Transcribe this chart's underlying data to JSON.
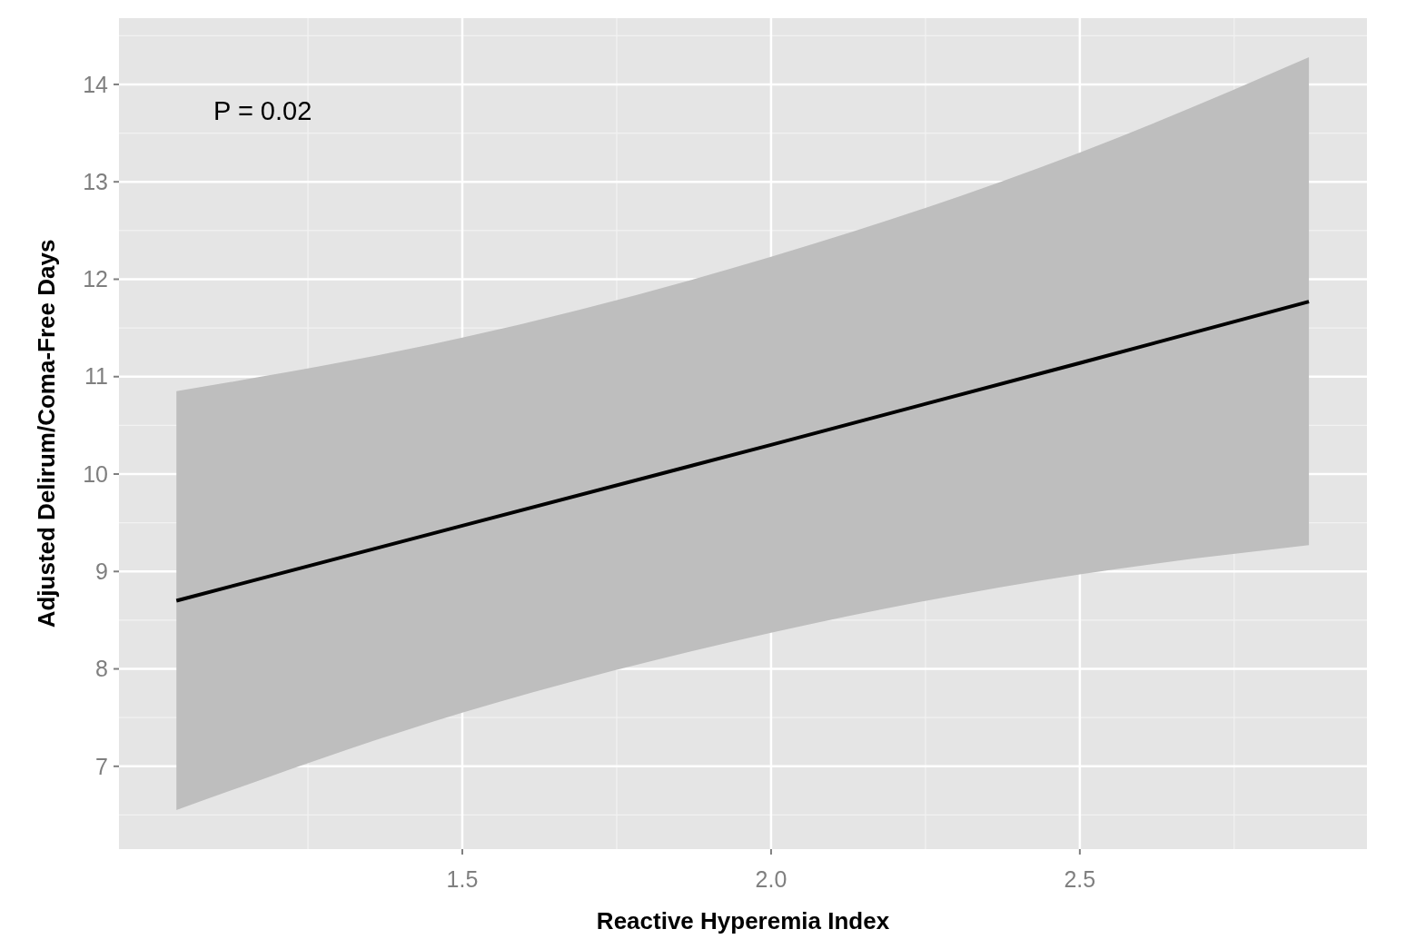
{
  "chart_data": {
    "type": "line",
    "xlabel": "Reactive Hyperemia Index",
    "ylabel": "Adjusted Delirum/Coma-Free Days",
    "annotations": [
      "P =  0.02"
    ],
    "xlim": [
      0.944,
      2.965
    ],
    "ylim": [
      6.15,
      14.68
    ],
    "xticks": [
      1.5,
      {
        "value": 2,
        "label": "2.0"
      },
      2.5
    ],
    "yticks": [
      7,
      8,
      9,
      10,
      11,
      12,
      13,
      14
    ],
    "grid": true,
    "series": [
      {
        "color": "#000000",
        "x": [
          1.037,
          1.5,
          2.0,
          2.5,
          2.871
        ],
        "values": [
          8.7,
          9.47,
          10.3,
          11.14,
          11.77
        ],
        "lower": [
          6.55,
          7.55,
          8.37,
          8.97,
          9.27
        ],
        "upper": [
          10.85,
          11.4,
          12.23,
          13.3,
          14.28
        ]
      }
    ]
  }
}
